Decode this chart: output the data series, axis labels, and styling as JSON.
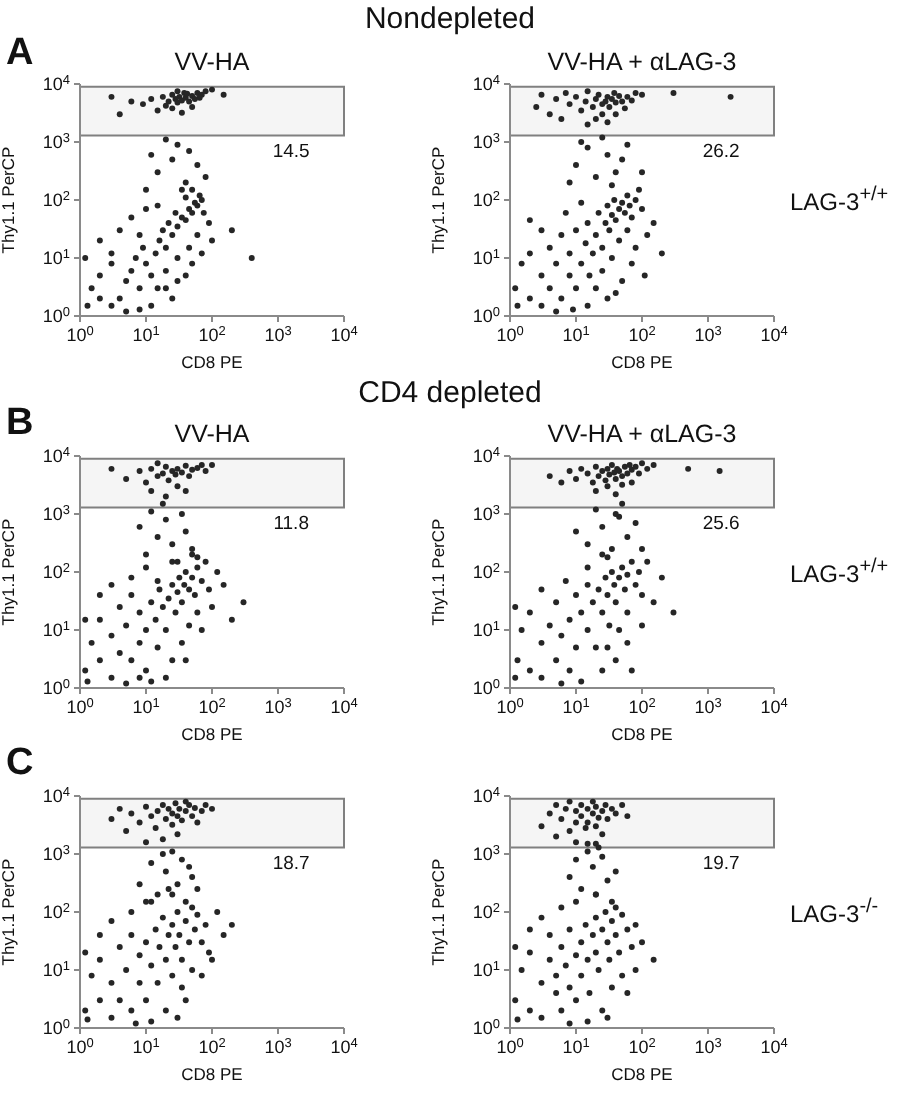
{
  "chart_data": [
    {
      "type": "scatter",
      "title": "VV-HA",
      "xlabel": "CD8 PE",
      "ylabel": "Thy1.1 PerCP",
      "log": "xy",
      "xlim": [
        1,
        10000
      ],
      "ylim": [
        1,
        10000
      ],
      "xticks": [
        {
          "value": 1,
          "label": "10$^{0}$"
        },
        {
          "value": 10,
          "label": "10$^{1}$"
        },
        {
          "value": 100,
          "label": "10$^{2}$"
        },
        {
          "value": 1000,
          "label": "10$^{3}$"
        },
        {
          "value": 10000,
          "label": "10$^{4}$"
        }
      ],
      "yticks": [
        {
          "value": 1,
          "label": "10$^{0}$"
        },
        {
          "value": 10,
          "label": "10$^{1}$"
        },
        {
          "value": 100,
          "label": "10$^{2}$"
        },
        {
          "value": 1000,
          "label": "10$^{3}$"
        },
        {
          "value": 10000,
          "label": "10$^{4}$"
        }
      ],
      "marker": "circle",
      "color": "#262626",
      "bands": [
        {
          "axis": "y",
          "from": 1300,
          "to": 9000,
          "label": "14.5",
          "color": "#808080"
        }
      ],
      "annotations": [
        "Nondepleted",
        "A"
      ],
      "x": [
        12,
        18,
        22,
        25,
        28,
        30,
        32,
        35,
        38,
        40,
        45,
        50,
        55,
        60,
        70,
        80,
        20,
        15,
        9,
        6,
        4,
        3,
        25,
        35,
        50,
        100,
        150,
        30,
        42,
        65,
        15,
        25,
        40,
        10,
        60,
        30,
        20,
        80,
        12,
        45,
        2,
        3,
        1.5,
        2,
        4,
        5,
        3,
        6,
        8,
        7,
        10,
        12,
        9,
        14,
        16,
        20,
        18,
        25,
        22,
        30,
        35,
        28,
        40,
        45,
        50,
        55,
        60,
        65,
        70,
        40,
        35,
        50,
        75,
        90,
        100,
        60,
        45,
        30,
        20,
        15,
        25,
        40,
        12,
        8,
        5,
        1.3,
        1.2,
        2,
        4,
        6,
        10,
        15,
        8,
        3,
        20,
        30,
        50,
        70,
        200,
        400
      ],
      "values": [
        5500,
        6000,
        5000,
        6500,
        5500,
        4800,
        6000,
        5200,
        7000,
        5800,
        5000,
        6200,
        5500,
        7000,
        6500,
        7500,
        4200,
        3500,
        4500,
        5000,
        3000,
        6000,
        3800,
        3200,
        4000,
        8000,
        6500,
        7500,
        6800,
        5800,
        300,
        500,
        200,
        150,
        400,
        900,
        1100,
        250,
        600,
        700,
        2,
        1.5,
        3,
        5,
        2,
        4,
        8,
        6,
        3,
        10,
        8,
        5,
        15,
        12,
        20,
        15,
        30,
        25,
        40,
        35,
        50,
        60,
        45,
        70,
        60,
        90,
        80,
        120,
        100,
        110,
        150,
        150,
        60,
        40,
        20,
        25,
        15,
        10,
        6,
        3,
        2,
        5,
        1.5,
        1.3,
        1.2,
        1.5,
        10,
        20,
        30,
        50,
        70,
        80,
        25,
        12,
        3,
        4,
        8,
        12,
        30,
        10
      ]
    },
    {
      "type": "scatter",
      "title": "VV-HA + αLAG-3",
      "xlabel": "CD8 PE",
      "ylabel": "Thy1.1 PerCP",
      "log": "xy",
      "xlim": [
        1,
        10000
      ],
      "ylim": [
        1,
        10000
      ],
      "xticks": [
        {
          "value": 1,
          "label": "10$^{0}$"
        },
        {
          "value": 10,
          "label": "10$^{1}$"
        },
        {
          "value": 100,
          "label": "10$^{2}$"
        },
        {
          "value": 1000,
          "label": "10$^{3}$"
        },
        {
          "value": 10000,
          "label": "10$^{4}$"
        }
      ],
      "yticks": [
        {
          "value": 1,
          "label": "10$^{0}$"
        },
        {
          "value": 10,
          "label": "10$^{1}$"
        },
        {
          "value": 100,
          "label": "10$^{2}$"
        },
        {
          "value": 1000,
          "label": "10$^{3}$"
        },
        {
          "value": 10000,
          "label": "10$^{4}$"
        }
      ],
      "marker": "circle",
      "color": "#262626",
      "bands": [
        {
          "axis": "y",
          "from": 1300,
          "to": 9000,
          "label": "26.2",
          "color": "#808080"
        }
      ],
      "annotations": [
        "LAG-3$^{+/+}$"
      ],
      "x": [
        2.5,
        3,
        4,
        5,
        6,
        7,
        8,
        10,
        12,
        14,
        15,
        18,
        20,
        22,
        25,
        25,
        28,
        30,
        32,
        35,
        38,
        40,
        45,
        50,
        55,
        60,
        70,
        80,
        100,
        20,
        30,
        15,
        40,
        300,
        2200,
        10,
        20,
        30,
        15,
        40,
        25,
        50,
        8,
        60,
        12,
        35,
        100,
        1.2,
        1.5,
        2,
        2,
        3,
        3,
        4,
        4,
        5,
        6,
        6,
        8,
        8,
        10,
        10,
        12,
        14,
        15,
        16,
        18,
        20,
        22,
        25,
        28,
        30,
        32,
        35,
        38,
        40,
        45,
        50,
        55,
        60,
        65,
        70,
        80,
        90,
        100,
        60,
        45,
        35,
        25,
        20,
        15,
        30,
        50,
        80,
        120,
        9,
        5,
        1.3,
        7,
        12,
        3,
        2,
        150,
        200,
        40,
        70,
        110
      ],
      "values": [
        4000,
        6500,
        3000,
        5500,
        2500,
        7000,
        4500,
        6000,
        3500,
        5000,
        7500,
        4000,
        5500,
        6500,
        4500,
        3000,
        5000,
        6000,
        4000,
        5500,
        7000,
        4800,
        6200,
        5000,
        3800,
        6000,
        5200,
        7000,
        6500,
        2500,
        2200,
        2000,
        3000,
        7000,
        6000,
        400,
        250,
        600,
        800,
        300,
        1200,
        500,
        200,
        900,
        1000,
        180,
        300,
        3,
        8,
        2,
        12,
        5,
        1.5,
        15,
        3,
        8,
        25,
        2,
        5,
        12,
        30,
        3,
        8,
        18,
        40,
        5,
        12,
        25,
        60,
        15,
        40,
        80,
        30,
        55,
        100,
        45,
        70,
        90,
        60,
        120,
        80,
        50,
        100,
        150,
        70,
        30,
        20,
        10,
        6,
        3,
        1.5,
        2,
        4,
        15,
        25,
        1.3,
        1.2,
        1.5,
        60,
        90,
        30,
        45,
        40,
        12,
        2.5,
        8,
        5
      ]
    },
    {
      "type": "scatter",
      "title": "VV-HA",
      "xlabel": "CD8 PE",
      "ylabel": "Thy1.1 PerCP",
      "log": "xy",
      "xlim": [
        1,
        10000
      ],
      "ylim": [
        1,
        10000
      ],
      "xticks": [
        {
          "value": 1,
          "label": "10$^{0}$"
        },
        {
          "value": 10,
          "label": "10$^{1}$"
        },
        {
          "value": 100,
          "label": "10$^{2}$"
        },
        {
          "value": 1000,
          "label": "10$^{3}$"
        },
        {
          "value": 10000,
          "label": "10$^{4}$"
        }
      ],
      "yticks": [
        {
          "value": 1,
          "label": "10$^{0}$"
        },
        {
          "value": 10,
          "label": "10$^{1}$"
        },
        {
          "value": 100,
          "label": "10$^{2}$"
        },
        {
          "value": 1000,
          "label": "10$^{3}$"
        },
        {
          "value": 10000,
          "label": "10$^{4}$"
        }
      ],
      "marker": "circle",
      "color": "#262626",
      "bands": [
        {
          "axis": "y",
          "from": 1300,
          "to": 9000,
          "label": "11.8",
          "color": "#808080"
        }
      ],
      "annotations": [
        "CD4 depleted",
        "B"
      ],
      "x": [
        5,
        8,
        10,
        12,
        15,
        18,
        20,
        22,
        25,
        28,
        30,
        35,
        40,
        45,
        50,
        60,
        70,
        80,
        12,
        20,
        30,
        40,
        3,
        100,
        15,
        10,
        15,
        20,
        25,
        30,
        40,
        12,
        35,
        50,
        8,
        60,
        18,
        1.2,
        1.5,
        2,
        2,
        3,
        3,
        4,
        4,
        5,
        6,
        6,
        8,
        8,
        10,
        10,
        12,
        14,
        15,
        16,
        18,
        20,
        22,
        25,
        28,
        30,
        32,
        35,
        38,
        40,
        45,
        50,
        55,
        60,
        70,
        80,
        90,
        60,
        45,
        35,
        25,
        20,
        12,
        40,
        70,
        100,
        150,
        200,
        8,
        5,
        1.3,
        1.2,
        2,
        3,
        6,
        10,
        25,
        50,
        300,
        120,
        15
      ],
      "values": [
        4000,
        5500,
        3500,
        6000,
        4500,
        5000,
        6500,
        3800,
        5500,
        4800,
        6000,
        5200,
        6800,
        4500,
        5800,
        6200,
        7000,
        5500,
        2500,
        2000,
        3000,
        2500,
        6000,
        7000,
        7500,
        200,
        400,
        800,
        300,
        150,
        500,
        1100,
        1000,
        250,
        600,
        180,
        1500,
        2,
        6,
        3,
        15,
        1.5,
        8,
        4,
        25,
        12,
        3,
        40,
        6,
        20,
        10,
        2,
        30,
        15,
        5,
        50,
        25,
        10,
        35,
        60,
        20,
        45,
        80,
        30,
        60,
        100,
        50,
        80,
        40,
        120,
        70,
        150,
        50,
        20,
        12,
        6,
        3,
        1.5,
        1.3,
        3,
        10,
        25,
        60,
        15,
        1.5,
        1.2,
        1.3,
        15,
        40,
        60,
        80,
        120,
        150,
        200,
        30,
        100,
        70
      ]
    },
    {
      "type": "scatter",
      "title": "VV-HA + αLAG-3",
      "xlabel": "CD8 PE",
      "ylabel": "Thy1.1 PerCP",
      "log": "xy",
      "xlim": [
        1,
        10000
      ],
      "ylim": [
        1,
        10000
      ],
      "xticks": [
        {
          "value": 1,
          "label": "10$^{0}$"
        },
        {
          "value": 10,
          "label": "10$^{1}$"
        },
        {
          "value": 100,
          "label": "10$^{2}$"
        },
        {
          "value": 1000,
          "label": "10$^{3}$"
        },
        {
          "value": 10000,
          "label": "10$^{4}$"
        }
      ],
      "yticks": [
        {
          "value": 1,
          "label": "10$^{0}$"
        },
        {
          "value": 10,
          "label": "10$^{1}$"
        },
        {
          "value": 100,
          "label": "10$^{2}$"
        },
        {
          "value": 1000,
          "label": "10$^{3}$"
        },
        {
          "value": 10000,
          "label": "10$^{4}$"
        }
      ],
      "marker": "circle",
      "color": "#262626",
      "bands": [
        {
          "axis": "y",
          "from": 1300,
          "to": 9000,
          "label": "25.6",
          "color": "#808080"
        }
      ],
      "annotations": [
        "LAG-3$^{+/+}$"
      ],
      "x": [
        4,
        6,
        8,
        10,
        12,
        15,
        18,
        20,
        22,
        25,
        28,
        30,
        32,
        35,
        38,
        40,
        42,
        45,
        50,
        55,
        60,
        65,
        70,
        80,
        90,
        100,
        120,
        150,
        30,
        50,
        20,
        40,
        70,
        500,
        1500,
        15,
        25,
        35,
        45,
        20,
        60,
        30,
        80,
        10,
        50,
        100,
        40,
        1.3,
        1.5,
        2,
        2,
        3,
        3,
        4,
        5,
        5,
        6,
        8,
        8,
        10,
        10,
        12,
        15,
        15,
        18,
        20,
        22,
        25,
        28,
        30,
        32,
        35,
        38,
        40,
        45,
        50,
        55,
        60,
        70,
        80,
        90,
        100,
        60,
        45,
        30,
        25,
        40,
        60,
        100,
        150,
        200,
        12,
        6,
        1.2,
        1.2,
        3,
        7,
        15,
        25,
        300,
        70,
        120
      ],
      "values": [
        4500,
        3500,
        5500,
        4000,
        6000,
        5000,
        3500,
        6500,
        4500,
        5500,
        3800,
        6000,
        4800,
        7000,
        5200,
        4000,
        6000,
        5500,
        4500,
        6500,
        5000,
        7000,
        5800,
        6500,
        5000,
        7500,
        6000,
        7000,
        3000,
        3200,
        2500,
        2200,
        3500,
        6000,
        5500,
        300,
        600,
        250,
        900,
        1200,
        400,
        180,
        700,
        500,
        1500,
        250,
        1000,
        3,
        10,
        2,
        20,
        6,
        1.5,
        12,
        3,
        30,
        8,
        15,
        2,
        40,
        5,
        20,
        10,
        60,
        30,
        5,
        50,
        20,
        80,
        40,
        12,
        100,
        60,
        30,
        80,
        120,
        50,
        90,
        150,
        60,
        100,
        40,
        20,
        10,
        5,
        2,
        3,
        6,
        12,
        30,
        80,
        1.3,
        1.2,
        1.5,
        25,
        50,
        70,
        120,
        200,
        20,
        2,
        150
      ]
    },
    {
      "type": "scatter",
      "xlabel": "CD8 PE",
      "ylabel": "Thy1.1 PerCP",
      "log": "xy",
      "xlim": [
        1,
        10000
      ],
      "ylim": [
        1,
        10000
      ],
      "xticks": [
        {
          "value": 1,
          "label": "10$^{0}$"
        },
        {
          "value": 10,
          "label": "10$^{1}$"
        },
        {
          "value": 100,
          "label": "10$^{2}$"
        },
        {
          "value": 1000,
          "label": "10$^{3}$"
        },
        {
          "value": 10000,
          "label": "10$^{4}$"
        }
      ],
      "yticks": [
        {
          "value": 1,
          "label": "10$^{0}$"
        },
        {
          "value": 10,
          "label": "10$^{1}$"
        },
        {
          "value": 100,
          "label": "10$^{2}$"
        },
        {
          "value": 1000,
          "label": "10$^{3}$"
        },
        {
          "value": 10000,
          "label": "10$^{4}$"
        }
      ],
      "marker": "circle",
      "color": "#262626",
      "bands": [
        {
          "axis": "y",
          "from": 1300,
          "to": 9000,
          "label": "18.7",
          "color": "#808080"
        }
      ],
      "annotations": [
        "C"
      ],
      "x": [
        3,
        4,
        5,
        6,
        8,
        10,
        12,
        14,
        15,
        18,
        20,
        22,
        25,
        25,
        28,
        30,
        32,
        35,
        40,
        45,
        50,
        55,
        60,
        70,
        80,
        18,
        30,
        10,
        100,
        40,
        8,
        12,
        15,
        20,
        25,
        30,
        35,
        40,
        50,
        18,
        60,
        10,
        22,
        45,
        1.2,
        1.5,
        2,
        2,
        3,
        3,
        4,
        4,
        5,
        6,
        6,
        8,
        8,
        10,
        10,
        12,
        14,
        15,
        16,
        18,
        20,
        22,
        25,
        25,
        28,
        30,
        32,
        35,
        40,
        45,
        50,
        55,
        60,
        70,
        80,
        90,
        50,
        35,
        20,
        12,
        40,
        70,
        100,
        150,
        7,
        1.3,
        1.2,
        2,
        3,
        6,
        12,
        25,
        200,
        30,
        120
      ],
      "values": [
        4000,
        6000,
        2500,
        5000,
        3500,
        6500,
        4500,
        2800,
        5500,
        7000,
        4000,
        6000,
        3200,
        5000,
        7500,
        4500,
        6000,
        3800,
        5500,
        7000,
        4500,
        6200,
        3500,
        5500,
        7000,
        1800,
        2200,
        1600,
        6000,
        8000,
        300,
        700,
        200,
        500,
        1100,
        300,
        800,
        150,
        400,
        1000,
        250,
        150,
        250,
        600,
        2,
        8,
        3,
        15,
        1.5,
        6,
        25,
        3,
        10,
        2,
        40,
        6,
        18,
        30,
        3,
        12,
        50,
        6,
        25,
        80,
        15,
        40,
        8,
        60,
        25,
        100,
        40,
        15,
        70,
        30,
        120,
        50,
        90,
        30,
        60,
        20,
        10,
        5,
        2,
        1.3,
        3,
        8,
        15,
        40,
        1.2,
        1.4,
        20,
        40,
        70,
        100,
        150,
        200,
        60,
        1.5,
        100
      ]
    },
    {
      "type": "scatter",
      "xlabel": "CD8 PE",
      "ylabel": "Thy1.1 PerCP",
      "log": "xy",
      "xlim": [
        1,
        10000
      ],
      "ylim": [
        1,
        10000
      ],
      "xticks": [
        {
          "value": 1,
          "label": "10$^{0}$"
        },
        {
          "value": 10,
          "label": "10$^{1}$"
        },
        {
          "value": 100,
          "label": "10$^{2}$"
        },
        {
          "value": 1000,
          "label": "10$^{3}$"
        },
        {
          "value": 10000,
          "label": "10$^{4}$"
        }
      ],
      "yticks": [
        {
          "value": 1,
          "label": "10$^{0}$"
        },
        {
          "value": 10,
          "label": "10$^{1}$"
        },
        {
          "value": 100,
          "label": "10$^{2}$"
        },
        {
          "value": 1000,
          "label": "10$^{3}$"
        },
        {
          "value": 10000,
          "label": "10$^{4}$"
        }
      ],
      "marker": "circle",
      "color": "#262626",
      "bands": [
        {
          "axis": "y",
          "from": 1300,
          "to": 9000,
          "label": "19.7",
          "color": "#808080"
        }
      ],
      "annotations": [
        "LAG-3$^{-/-}$"
      ],
      "x": [
        3,
        4,
        5,
        5,
        6,
        7,
        8,
        8,
        10,
        10,
        12,
        12,
        14,
        15,
        15,
        18,
        18,
        20,
        20,
        22,
        25,
        25,
        28,
        30,
        35,
        40,
        10,
        20,
        50,
        60,
        8,
        10,
        12,
        15,
        18,
        20,
        25,
        30,
        35,
        40,
        15,
        22,
        1.2,
        1.5,
        2,
        2,
        3,
        3,
        4,
        4,
        5,
        5,
        6,
        6,
        7,
        8,
        8,
        10,
        10,
        12,
        12,
        14,
        15,
        16,
        18,
        20,
        20,
        22,
        25,
        28,
        30,
        32,
        35,
        40,
        40,
        45,
        50,
        60,
        70,
        50,
        35,
        25,
        15,
        60,
        80,
        100,
        8,
        1.3,
        1.2,
        2,
        3,
        6,
        10,
        20,
        150,
        30,
        80
      ],
      "values": [
        3000,
        5000,
        2000,
        7000,
        4000,
        6000,
        2500,
        8000,
        3500,
        5500,
        4500,
        7000,
        2800,
        6000,
        3500,
        5000,
        8000,
        3000,
        6500,
        4200,
        5500,
        2200,
        7000,
        4000,
        6000,
        5000,
        1600,
        1500,
        7000,
        4500,
        400,
        800,
        250,
        1100,
        600,
        200,
        900,
        350,
        150,
        500,
        1500,
        1300,
        3,
        10,
        2,
        20,
        6,
        1.5,
        15,
        40,
        4,
        8,
        25,
        2,
        12,
        50,
        5,
        18,
        3,
        30,
        8,
        60,
        15,
        4,
        40,
        20,
        80,
        10,
        50,
        100,
        30,
        15,
        70,
        120,
        40,
        20,
        90,
        50,
        25,
        8,
        5,
        2,
        1.3,
        4,
        10,
        30,
        1.2,
        1.4,
        25,
        50,
        80,
        120,
        150,
        200,
        15,
        1.5,
        60
      ]
    }
  ]
}
